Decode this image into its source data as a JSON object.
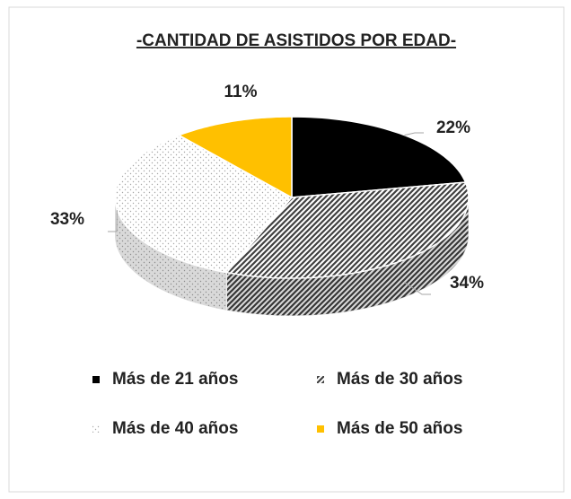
{
  "chart_data": {
    "type": "pie",
    "title": "-CANTIDAD DE ASISTIDOS POR EDAD-",
    "categories": [
      "Más de 21 años",
      "Más de 30 años",
      "Más de 40 años",
      "Más de 50 años"
    ],
    "values": [
      22,
      34,
      33,
      11
    ],
    "value_labels": [
      "22%",
      "34%",
      "33%",
      "11%"
    ],
    "colors": [
      "#000000",
      "#404040",
      "#a6a6a6",
      "#ffc000"
    ],
    "legend": "bottom"
  }
}
